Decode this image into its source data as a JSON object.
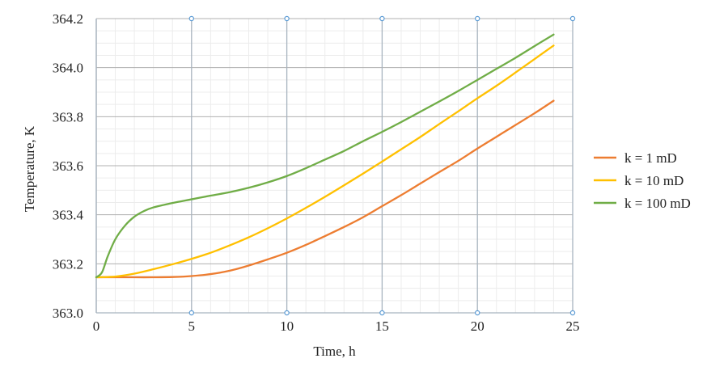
{
  "chart_data": {
    "type": "line",
    "title": "",
    "xlabel": "Time, h",
    "ylabel": "Temperature, K",
    "xlim": [
      0,
      25
    ],
    "ylim": [
      363.0,
      364.2
    ],
    "xticks": [
      0,
      5,
      10,
      15,
      20,
      25
    ],
    "xtick_labels": [
      "0",
      "5",
      "10",
      "15",
      "20",
      "25"
    ],
    "yticks": [
      363.0,
      363.2,
      363.4,
      363.6,
      363.8,
      364.0,
      364.2
    ],
    "ytick_labels": [
      "363.0",
      "363.2",
      "363.4",
      "363.6",
      "363.8",
      "364.0",
      "364.2"
    ],
    "grid": true,
    "legend_position": "right",
    "series": [
      {
        "name": "k = 1 mD",
        "color": "#ED7D31",
        "x": [
          0,
          1,
          2,
          3,
          4,
          5,
          6,
          7,
          8,
          9,
          10,
          11,
          12,
          13,
          14,
          15,
          16,
          17,
          18,
          19,
          20,
          21,
          22,
          23,
          24
        ],
        "y": [
          363.145,
          363.145,
          363.145,
          363.145,
          363.146,
          363.15,
          363.158,
          363.172,
          363.193,
          363.218,
          363.245,
          363.277,
          363.313,
          363.35,
          363.39,
          363.435,
          363.48,
          363.527,
          363.574,
          363.62,
          363.67,
          363.718,
          363.766,
          363.814,
          363.865
        ]
      },
      {
        "name": "k = 10 mD",
        "color": "#FFC000",
        "x": [
          0,
          1,
          2,
          3,
          4,
          5,
          6,
          7,
          8,
          9,
          10,
          11,
          12,
          13,
          14,
          15,
          16,
          17,
          18,
          19,
          20,
          21,
          22,
          23,
          24
        ],
        "y": [
          363.145,
          363.148,
          363.16,
          363.178,
          363.198,
          363.22,
          363.245,
          363.275,
          363.308,
          363.345,
          363.385,
          363.428,
          363.473,
          363.52,
          363.568,
          363.617,
          363.667,
          363.717,
          363.77,
          363.822,
          363.875,
          363.926,
          363.98,
          364.035,
          364.09
        ]
      },
      {
        "name": "k = 100 mD",
        "color": "#70AD47",
        "x": [
          0,
          0.3,
          0.6,
          1,
          1.5,
          2,
          2.5,
          3,
          4,
          5,
          6,
          7,
          8,
          9,
          10,
          11,
          12,
          13,
          14,
          15,
          16,
          17,
          18,
          19,
          20,
          21,
          22,
          23,
          24
        ],
        "y": [
          363.145,
          363.165,
          363.23,
          363.3,
          363.355,
          363.392,
          363.415,
          363.43,
          363.448,
          363.463,
          363.478,
          363.492,
          363.51,
          363.532,
          363.558,
          363.59,
          363.625,
          363.66,
          363.7,
          363.738,
          363.778,
          363.82,
          363.862,
          363.905,
          363.95,
          363.995,
          364.04,
          364.088,
          364.135
        ]
      }
    ]
  }
}
